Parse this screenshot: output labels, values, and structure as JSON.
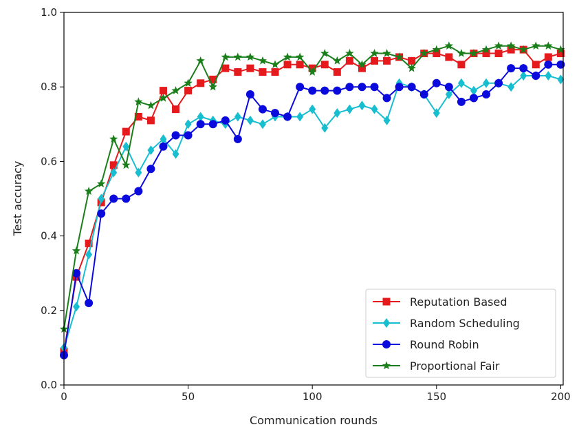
{
  "chart_data": {
    "type": "line",
    "title": "",
    "xlabel": "Communication rounds",
    "ylabel": "Test accuracy",
    "xlim": [
      0,
      201
    ],
    "ylim": [
      0.0,
      1.0
    ],
    "xticks": [
      "0",
      "50",
      "100",
      "150",
      "200"
    ],
    "yticks": [
      "0.0",
      "0.2",
      "0.4",
      "0.6",
      "0.8",
      "1.0"
    ],
    "grid": false,
    "legend": "bottom-right",
    "series": [
      {
        "name": "Reputation Based",
        "color": "#e41a1c",
        "marker": "square",
        "x": [
          0,
          5,
          10,
          15,
          20,
          25,
          30,
          35,
          40,
          45,
          50,
          55,
          60,
          65,
          70,
          75,
          80,
          85,
          90,
          95,
          100,
          105,
          110,
          115,
          120,
          125,
          130,
          135,
          140,
          145,
          150,
          155,
          160,
          165,
          170,
          175,
          180,
          185,
          190,
          195,
          200
        ],
        "y": [
          0.09,
          0.29,
          0.38,
          0.49,
          0.59,
          0.68,
          0.72,
          0.71,
          0.79,
          0.74,
          0.79,
          0.81,
          0.82,
          0.85,
          0.84,
          0.85,
          0.84,
          0.84,
          0.86,
          0.86,
          0.85,
          0.86,
          0.84,
          0.87,
          0.85,
          0.87,
          0.87,
          0.88,
          0.87,
          0.89,
          0.89,
          0.88,
          0.86,
          0.89,
          0.89,
          0.89,
          0.9,
          0.9,
          0.86,
          0.88,
          0.89
        ]
      },
      {
        "name": "Random Scheduling",
        "color": "#17becf",
        "marker": "diamond",
        "x": [
          0,
          5,
          10,
          15,
          20,
          25,
          30,
          35,
          40,
          45,
          50,
          55,
          60,
          65,
          70,
          75,
          80,
          85,
          90,
          95,
          100,
          105,
          110,
          115,
          120,
          125,
          130,
          135,
          140,
          145,
          150,
          155,
          160,
          165,
          170,
          175,
          180,
          185,
          190,
          195,
          200
        ],
        "y": [
          0.1,
          0.21,
          0.35,
          0.5,
          0.57,
          0.64,
          0.57,
          0.63,
          0.66,
          0.62,
          0.7,
          0.72,
          0.71,
          0.7,
          0.72,
          0.71,
          0.7,
          0.72,
          0.72,
          0.72,
          0.74,
          0.69,
          0.73,
          0.74,
          0.75,
          0.74,
          0.71,
          0.81,
          0.8,
          0.78,
          0.73,
          0.78,
          0.81,
          0.79,
          0.81,
          0.81,
          0.8,
          0.83,
          0.83,
          0.83,
          0.82
        ]
      },
      {
        "name": "Round Robin",
        "color": "#0a0adc",
        "marker": "circle",
        "x": [
          0,
          5,
          10,
          15,
          20,
          25,
          30,
          35,
          40,
          45,
          50,
          55,
          60,
          65,
          70,
          75,
          80,
          85,
          90,
          95,
          100,
          105,
          110,
          115,
          120,
          125,
          130,
          135,
          140,
          145,
          150,
          155,
          160,
          165,
          170,
          175,
          180,
          185,
          190,
          195,
          200
        ],
        "y": [
          0.08,
          0.3,
          0.22,
          0.46,
          0.5,
          0.5,
          0.52,
          0.58,
          0.64,
          0.67,
          0.67,
          0.7,
          0.7,
          0.71,
          0.66,
          0.78,
          0.74,
          0.73,
          0.72,
          0.8,
          0.79,
          0.79,
          0.79,
          0.8,
          0.8,
          0.8,
          0.77,
          0.8,
          0.8,
          0.78,
          0.81,
          0.8,
          0.76,
          0.77,
          0.78,
          0.81,
          0.85,
          0.85,
          0.83,
          0.86,
          0.86
        ]
      },
      {
        "name": "Proportional Fair",
        "color": "#1a7f1a",
        "marker": "star",
        "x": [
          0,
          5,
          10,
          15,
          20,
          25,
          30,
          35,
          40,
          45,
          50,
          55,
          60,
          65,
          70,
          75,
          80,
          85,
          90,
          95,
          100,
          105,
          110,
          115,
          120,
          125,
          130,
          135,
          140,
          145,
          150,
          155,
          160,
          165,
          170,
          175,
          180,
          185,
          190,
          195,
          200
        ],
        "y": [
          0.15,
          0.36,
          0.52,
          0.54,
          0.66,
          0.59,
          0.76,
          0.75,
          0.77,
          0.79,
          0.81,
          0.87,
          0.8,
          0.88,
          0.88,
          0.88,
          0.87,
          0.86,
          0.88,
          0.88,
          0.84,
          0.89,
          0.87,
          0.89,
          0.86,
          0.89,
          0.89,
          0.88,
          0.85,
          0.89,
          0.9,
          0.91,
          0.89,
          0.89,
          0.9,
          0.91,
          0.91,
          0.9,
          0.91,
          0.91,
          0.9
        ]
      }
    ]
  }
}
